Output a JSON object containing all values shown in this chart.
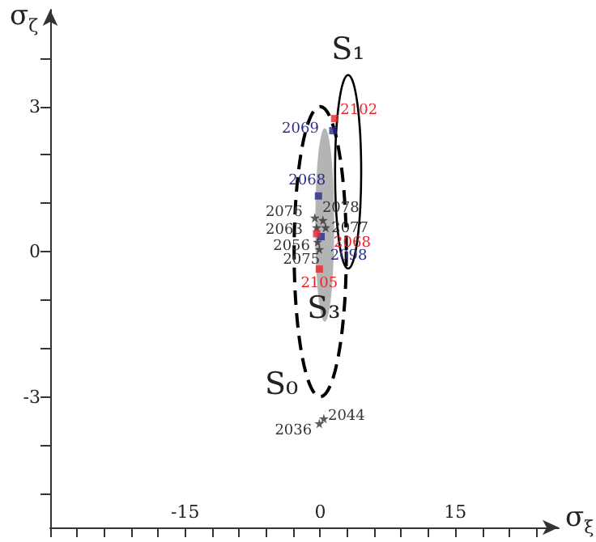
{
  "chart_data": {
    "type": "scatter",
    "xlabel": "σ$_{ξ}$",
    "ylabel": "σ$_{ζ}$",
    "xlim": [
      -30,
      26.5
    ],
    "ylim": [
      -5.7,
      5
    ],
    "xticks": [
      {
        "value": -30,
        "label": null
      },
      {
        "value": -27,
        "label": null
      },
      {
        "value": -24,
        "label": null
      },
      {
        "value": -21,
        "label": null
      },
      {
        "value": -18,
        "label": null
      },
      -15,
      {
        "value": -12,
        "label": null
      },
      {
        "value": -9,
        "label": null
      },
      {
        "value": -6,
        "label": null
      },
      {
        "value": -3,
        "label": null
      },
      0,
      {
        "value": 3,
        "label": null
      },
      {
        "value": 6,
        "label": null
      },
      {
        "value": 9,
        "label": null
      },
      {
        "value": 12,
        "label": null
      },
      15,
      {
        "value": 18,
        "label": null
      },
      {
        "value": 21,
        "label": null
      },
      {
        "value": 24,
        "label": null
      }
    ],
    "yticks": [
      {
        "value": -5,
        "label": null
      },
      {
        "value": -4,
        "label": null
      },
      -3,
      {
        "value": -2,
        "label": null
      },
      {
        "value": -1,
        "label": null
      },
      0,
      {
        "value": 1,
        "label": null
      },
      {
        "value": 2,
        "label": null
      },
      3,
      {
        "value": 4,
        "label": null
      }
    ],
    "grid": false,
    "series": [
      {
        "marker": "star",
        "color": "#333333",
        "x": [
          -0.6,
          -0.4,
          -0.3,
          -0.1,
          0.3,
          0.6,
          -0.1,
          0.4
        ],
        "values": [
          0.7,
          0.5,
          0.2,
          0.05,
          0.65,
          0.5,
          -3.55,
          -3.45
        ]
      },
      {
        "marker": "square",
        "color": "#2b2b8f",
        "x": [
          1.4,
          -0.2,
          0.1
        ],
        "values": [
          2.5,
          1.15,
          0.31
        ]
      },
      {
        "marker": "square",
        "color": "#e8262a",
        "x": [
          1.6,
          -0.4,
          -0.1
        ],
        "values": [
          2.75,
          0.37,
          -0.36
        ]
      }
    ],
    "annotations": [
      "S₀",
      "S₁",
      "S₃",
      {
        "text": "2076",
        "x": -0.6,
        "y": 0.7
      },
      {
        "text": "2063",
        "x": -0.4,
        "y": 0.5
      },
      {
        "text": "2056",
        "x": -0.3,
        "y": 0.2
      },
      {
        "text": "2075",
        "x": -0.1,
        "y": 0.05
      },
      {
        "text": "2078",
        "x": 0.3,
        "y": 0.65
      },
      {
        "text": "2077",
        "x": 0.6,
        "y": 0.5
      },
      {
        "text": "2036",
        "x": -0.1,
        "y": -3.55
      },
      {
        "text": "2044",
        "x": 0.4,
        "y": -3.45
      },
      {
        "text": "2069",
        "x": 1.4,
        "y": 2.5
      },
      {
        "text": "2068",
        "x": -0.2,
        "y": 1.15
      },
      {
        "text": "2098",
        "x": 0.1,
        "y": 0.31
      },
      {
        "text": "2102",
        "x": 1.6,
        "y": 2.75
      },
      {
        "text": "2068",
        "x": -0.4,
        "y": 0.37
      },
      {
        "text": "2105",
        "x": -0.1,
        "y": -0.36
      }
    ]
  }
}
